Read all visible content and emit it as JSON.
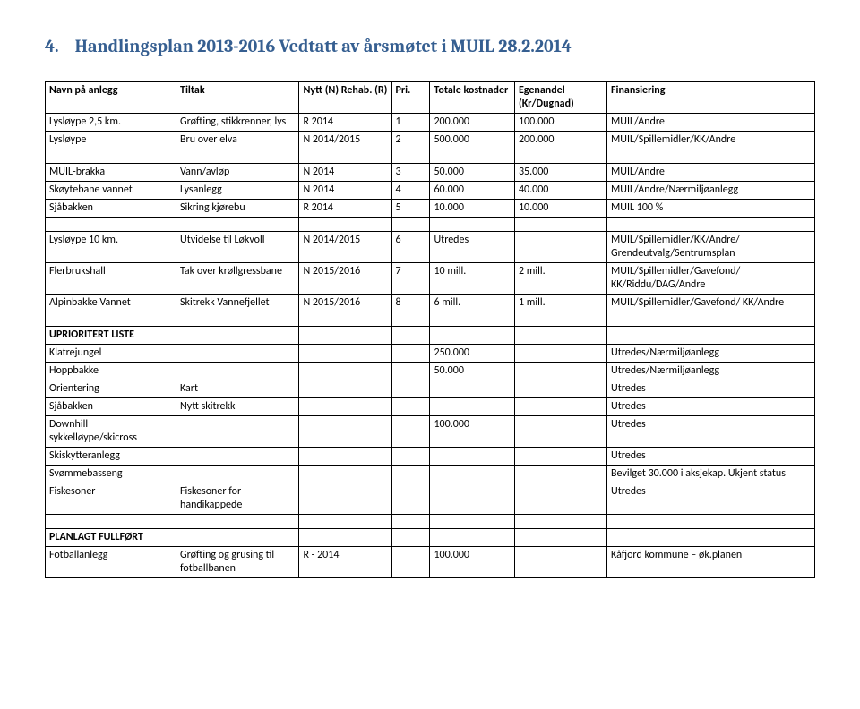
{
  "heading": {
    "number": "4.",
    "text": "Handlingsplan 2013-2016 Vedtatt av årsmøtet i MUIL 28.2.2014",
    "color": "#365f91",
    "fontsize_pt": 15
  },
  "table": {
    "columns": [
      "Navn på anlegg",
      "Tiltak",
      "Nytt (N) Rehab. (R)",
      "Pri.",
      "Totale kostnader",
      "Egenandel (Kr/Dugnad)",
      "Finansiering"
    ],
    "column_widths_pct": [
      17,
      16,
      12,
      5,
      11,
      12,
      27
    ],
    "border_color": "#000000",
    "font_size_pt": 9,
    "sections": [
      {
        "type": "header",
        "rows": [
          [
            "Navn på anlegg",
            "Tiltak",
            "Nytt (N) Rehab. (R)",
            "Pri.",
            "Totale kostnader",
            "Egenandel (Kr/Dugnad)",
            "Finansiering"
          ]
        ]
      },
      {
        "type": "data",
        "rows": [
          [
            "Lysløype 2,5 km.",
            "Grøfting, stikkrenner, lys",
            "R 2014",
            "1",
            "200.000",
            "100.000",
            "MUIL/Andre"
          ],
          [
            "Lysløype",
            "Bru over elva",
            "N 2014/2015",
            "2",
            "500.000",
            "200.000",
            "MUIL/Spillemidler/KK/Andre"
          ]
        ]
      },
      {
        "type": "spacer"
      },
      {
        "type": "data",
        "rows": [
          [
            "MUIL-brakka",
            "Vann/avløp",
            "N 2014",
            "3",
            "50.000",
            "35.000",
            "MUIL/Andre"
          ],
          [
            "Skøytebane vannet",
            "Lysanlegg",
            "N 2014",
            "4",
            "60.000",
            "40.000",
            "MUIL/Andre/Nærmiljøanlegg"
          ],
          [
            "Sjåbakken",
            "Sikring kjørebu",
            "R 2014",
            "5",
            "10.000",
            "10.000",
            "MUIL 100 %"
          ]
        ]
      },
      {
        "type": "spacer"
      },
      {
        "type": "data",
        "rows": [
          [
            "Lysløype 10 km.",
            "Utvidelse til Løkvoll",
            "N 2014/2015",
            "6",
            "Utredes",
            "",
            "MUIL/Spillemidler/KK/Andre/ Grendeutvalg/Sentrumsplan"
          ],
          [
            "Flerbrukshall",
            "Tak over krøllgressbane",
            "N 2015/2016",
            "7",
            "10 mill.",
            "2 mill.",
            "MUIL/Spillemidler/Gavefond/ KK/Riddu/DAG/Andre"
          ],
          [
            "Alpinbakke Vannet",
            "Skitrekk Vannefjellet",
            "N 2015/2016",
            "8",
            "6 mill.",
            "1 mill.",
            "MUIL/Spillemidler/Gavefond/ KK/Andre"
          ]
        ]
      },
      {
        "type": "spacer"
      },
      {
        "type": "section-title",
        "rows": [
          [
            "UPRIORITERT LISTE",
            "",
            "",
            "",
            "",
            "",
            ""
          ]
        ]
      },
      {
        "type": "data",
        "rows": [
          [
            "Klatrejungel",
            "",
            "",
            "",
            "250.000",
            "",
            "Utredes/Nærmiljøanlegg"
          ],
          [
            "Hoppbakke",
            "",
            "",
            "",
            "50.000",
            "",
            "Utredes/Nærmiljøanlegg"
          ],
          [
            "Orientering",
            "Kart",
            "",
            "",
            "",
            "",
            "Utredes"
          ],
          [
            "Sjåbakken",
            "Nytt skitrekk",
            "",
            "",
            "",
            "",
            "Utredes"
          ],
          [
            "Downhill sykkelløype/skicross",
            "",
            "",
            "",
            "100.000",
            "",
            "Utredes"
          ],
          [
            "Skiskytteranlegg",
            "",
            "",
            "",
            "",
            "",
            "Utredes"
          ],
          [
            "Svømmebasseng",
            "",
            "",
            "",
            "",
            "",
            "Bevilget 30.000 i aksjekap. Ukjent status"
          ],
          [
            "Fiskesoner",
            "Fiskesoner for handikappede",
            "",
            "",
            "",
            "",
            "Utredes"
          ]
        ]
      },
      {
        "type": "spacer"
      },
      {
        "type": "section-title",
        "rows": [
          [
            "PLANLAGT FULLFØRT",
            "",
            "",
            "",
            "",
            "",
            ""
          ]
        ]
      },
      {
        "type": "data",
        "rows": [
          [
            "Fotballanlegg",
            "Grøfting og grusing til fotballbanen",
            "R - 2014",
            "",
            "100.000",
            "",
            "Kåfjord kommune – øk.planen"
          ]
        ]
      }
    ]
  }
}
